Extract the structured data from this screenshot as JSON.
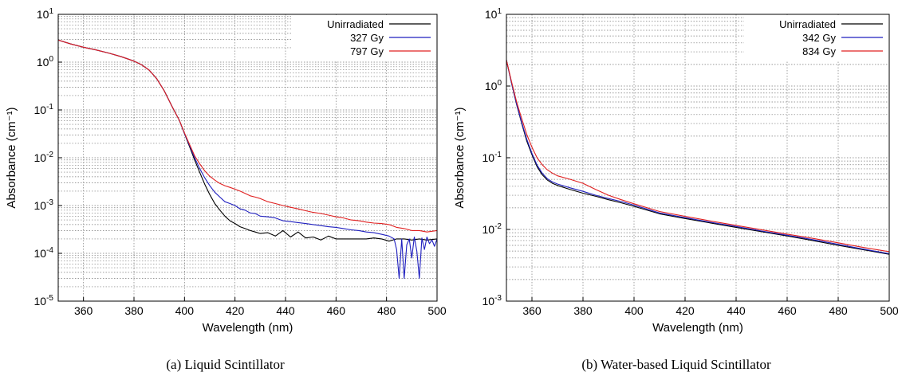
{
  "chart_data": [
    {
      "type": "line",
      "panel": "a",
      "caption": "(a) Liquid Scintillator",
      "xlabel": "Wavelength (nm)",
      "ylabel": "Absorbance (cm⁻¹)",
      "xlim": [
        350,
        500
      ],
      "ylim": [
        1e-05,
        10
      ],
      "yscale": "log",
      "grid": true,
      "legend_position": "top-right",
      "x_ticks": [
        360,
        380,
        400,
        420,
        440,
        460,
        480,
        500
      ],
      "x_tick_labels": [
        "360",
        "380",
        "400",
        "420",
        "440",
        "460",
        "480",
        "500"
      ],
      "y_ticks": [
        1e-05,
        0.0001,
        0.001,
        0.01,
        0.1,
        1,
        10
      ],
      "y_tick_labels": [
        {
          "base": "10",
          "exp": "-5"
        },
        {
          "base": "10",
          "exp": "-4"
        },
        {
          "base": "10",
          "exp": "-3"
        },
        {
          "base": "10",
          "exp": "-2"
        },
        {
          "base": "10",
          "exp": "-1"
        },
        {
          "base": "10",
          "exp": "0"
        },
        {
          "base": "10",
          "exp": "1"
        }
      ],
      "series": [
        {
          "name": "Unirradiated",
          "color": "#000000",
          "x": [
            350,
            355,
            360,
            365,
            370,
            375,
            380,
            383,
            386,
            389,
            392,
            395,
            398,
            400,
            402,
            404,
            406,
            408,
            410,
            412,
            414,
            416,
            418,
            420,
            422,
            424,
            426,
            428,
            430,
            433,
            436,
            439,
            442,
            445,
            448,
            451,
            454,
            457,
            460,
            463,
            466,
            469,
            472,
            475,
            478,
            481,
            484,
            487,
            490,
            493,
            496,
            500
          ],
          "y": [
            2.9,
            2.4,
            2.05,
            1.8,
            1.55,
            1.3,
            1.05,
            0.88,
            0.68,
            0.45,
            0.25,
            0.12,
            0.06,
            0.032,
            0.017,
            0.009,
            0.005,
            0.0028,
            0.0017,
            0.0011,
            0.0008,
            0.0006,
            0.00048,
            0.00042,
            0.00036,
            0.00033,
            0.0003,
            0.00028,
            0.00026,
            0.00027,
            0.00023,
            0.0003,
            0.00022,
            0.00028,
            0.00021,
            0.00022,
            0.00019,
            0.00023,
            0.0002,
            0.0002,
            0.0002,
            0.0002,
            0.0002,
            0.00021,
            0.0002,
            0.00018,
            0.0002,
            0.0002,
            0.00019,
            0.0002,
            0.00019,
            0.0002
          ]
        },
        {
          "name": "327 Gy",
          "color": "#1f1fbf",
          "x": [
            350,
            355,
            360,
            365,
            370,
            375,
            380,
            383,
            386,
            389,
            392,
            395,
            398,
            400,
            402,
            404,
            406,
            408,
            410,
            412,
            414,
            416,
            418,
            420,
            422,
            424,
            426,
            428,
            430,
            433,
            436,
            439,
            442,
            445,
            448,
            451,
            454,
            457,
            460,
            463,
            466,
            469,
            472,
            475,
            478,
            481,
            483,
            484,
            485,
            486,
            487,
            488,
            489,
            490,
            491,
            492,
            493,
            494,
            495,
            496,
            497,
            498,
            499,
            500
          ],
          "y": [
            2.9,
            2.4,
            2.05,
            1.8,
            1.55,
            1.3,
            1.05,
            0.88,
            0.68,
            0.45,
            0.25,
            0.12,
            0.06,
            0.032,
            0.018,
            0.01,
            0.006,
            0.0038,
            0.0026,
            0.0019,
            0.0015,
            0.0012,
            0.0011,
            0.001,
            0.00085,
            0.0008,
            0.0007,
            0.00068,
            0.0006,
            0.00058,
            0.00055,
            0.00048,
            0.00046,
            0.00044,
            0.00042,
            0.0004,
            0.00038,
            0.00036,
            0.00035,
            0.00033,
            0.00031,
            0.0003,
            0.00028,
            0.00027,
            0.00025,
            0.00023,
            0.0002,
            0.00012,
            3e-05,
            0.0002,
            3e-05,
            0.00015,
            0.0002,
            8e-05,
            0.00022,
            0.00011,
            3e-05,
            0.00021,
            0.00012,
            0.00022,
            0.00016,
            0.00019,
            0.00014,
            0.0002
          ]
        },
        {
          "name": "797 Gy",
          "color": "#e02020",
          "x": [
            350,
            355,
            360,
            365,
            370,
            375,
            380,
            383,
            386,
            389,
            392,
            395,
            398,
            400,
            402,
            404,
            406,
            408,
            410,
            412,
            414,
            416,
            418,
            420,
            422,
            424,
            426,
            428,
            430,
            433,
            436,
            439,
            442,
            445,
            448,
            451,
            454,
            457,
            460,
            463,
            466,
            469,
            472,
            475,
            478,
            481,
            484,
            487,
            490,
            493,
            496,
            500
          ],
          "y": [
            2.9,
            2.4,
            2.05,
            1.8,
            1.55,
            1.3,
            1.05,
            0.88,
            0.68,
            0.45,
            0.25,
            0.12,
            0.06,
            0.033,
            0.019,
            0.011,
            0.0075,
            0.0053,
            0.0041,
            0.0034,
            0.0029,
            0.0026,
            0.0024,
            0.0022,
            0.002,
            0.0018,
            0.0016,
            0.0015,
            0.0014,
            0.0012,
            0.0011,
            0.001,
            0.00092,
            0.00085,
            0.00078,
            0.00072,
            0.00068,
            0.00063,
            0.00058,
            0.00055,
            0.0005,
            0.00048,
            0.00045,
            0.00043,
            0.00042,
            0.0004,
            0.00035,
            0.00033,
            0.0003,
            0.0003,
            0.00028,
            0.0003
          ]
        }
      ]
    },
    {
      "type": "line",
      "panel": "b",
      "caption": "(b) Water-based Liquid Scintillator",
      "xlabel": "Wavelength (nm)",
      "ylabel": "Absorbance (cm⁻¹)",
      "xlim": [
        350,
        500
      ],
      "ylim": [
        0.001,
        10
      ],
      "yscale": "log",
      "grid": true,
      "legend_position": "top-right",
      "x_ticks": [
        360,
        380,
        400,
        420,
        440,
        460,
        480,
        500
      ],
      "x_tick_labels": [
        "360",
        "380",
        "400",
        "420",
        "440",
        "460",
        "480",
        "500"
      ],
      "y_ticks": [
        0.001,
        0.01,
        0.1,
        1,
        10
      ],
      "y_tick_labels": [
        {
          "base": "10",
          "exp": "-3"
        },
        {
          "base": "10",
          "exp": "-2"
        },
        {
          "base": "10",
          "exp": "-1"
        },
        {
          "base": "10",
          "exp": "0"
        },
        {
          "base": "10",
          "exp": "1"
        }
      ],
      "series": [
        {
          "name": "Unirradiated",
          "color": "#000000",
          "x": [
            350,
            352,
            354,
            356,
            358,
            360,
            362,
            364,
            366,
            368,
            370,
            375,
            380,
            385,
            390,
            395,
            400,
            410,
            420,
            430,
            440,
            450,
            460,
            470,
            480,
            490,
            500
          ],
          "y": [
            2.3,
            1.1,
            0.55,
            0.3,
            0.17,
            0.11,
            0.075,
            0.058,
            0.049,
            0.044,
            0.041,
            0.036,
            0.032,
            0.029,
            0.026,
            0.0235,
            0.021,
            0.0165,
            0.0142,
            0.0123,
            0.0107,
            0.0093,
            0.0081,
            0.007,
            0.006,
            0.0052,
            0.0045
          ]
        },
        {
          "name": "342 Gy",
          "color": "#1f1fbf",
          "x": [
            350,
            352,
            354,
            356,
            358,
            360,
            362,
            364,
            366,
            368,
            370,
            375,
            380,
            385,
            390,
            395,
            400,
            410,
            420,
            430,
            440,
            450,
            460,
            470,
            480,
            490,
            500
          ],
          "y": [
            2.3,
            1.1,
            0.56,
            0.31,
            0.18,
            0.115,
            0.079,
            0.061,
            0.051,
            0.046,
            0.043,
            0.038,
            0.034,
            0.03,
            0.027,
            0.0245,
            0.0218,
            0.017,
            0.0146,
            0.0126,
            0.011,
            0.0095,
            0.0083,
            0.0072,
            0.0062,
            0.0053,
            0.0046
          ]
        },
        {
          "name": "834 Gy",
          "color": "#e02020",
          "x": [
            350,
            352,
            354,
            356,
            358,
            360,
            362,
            364,
            366,
            368,
            370,
            375,
            380,
            385,
            390,
            395,
            400,
            410,
            420,
            430,
            440,
            450,
            460,
            470,
            480,
            490,
            500
          ],
          "y": [
            2.3,
            1.15,
            0.6,
            0.35,
            0.21,
            0.14,
            0.1,
            0.08,
            0.068,
            0.061,
            0.056,
            0.05,
            0.044,
            0.036,
            0.03,
            0.026,
            0.0228,
            0.0178,
            0.0152,
            0.0131,
            0.0114,
            0.0099,
            0.0086,
            0.0075,
            0.0065,
            0.0056,
            0.0049
          ]
        }
      ]
    }
  ]
}
